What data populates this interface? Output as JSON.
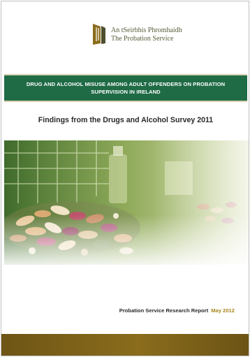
{
  "logo": {
    "name_irish": "An tSeirbhís Phromhaidh",
    "name_english": "The Probation Service",
    "icon": "harp-logo-icon"
  },
  "cover": {
    "title": "DRUG AND ALCOHOL MISUSE AMONG ADULT OFFENDERS ON PROBATION SUPERVISION IN IRELAND",
    "subtitle": "Findings from the Drugs and Alcohol Survey 2011",
    "report_label": "Probation Service Research Report",
    "report_date": "May 2012"
  },
  "colors": {
    "band_green": "#1f6b45",
    "footer_brown": "#7a5f18",
    "date_gold": "#a8861e"
  }
}
